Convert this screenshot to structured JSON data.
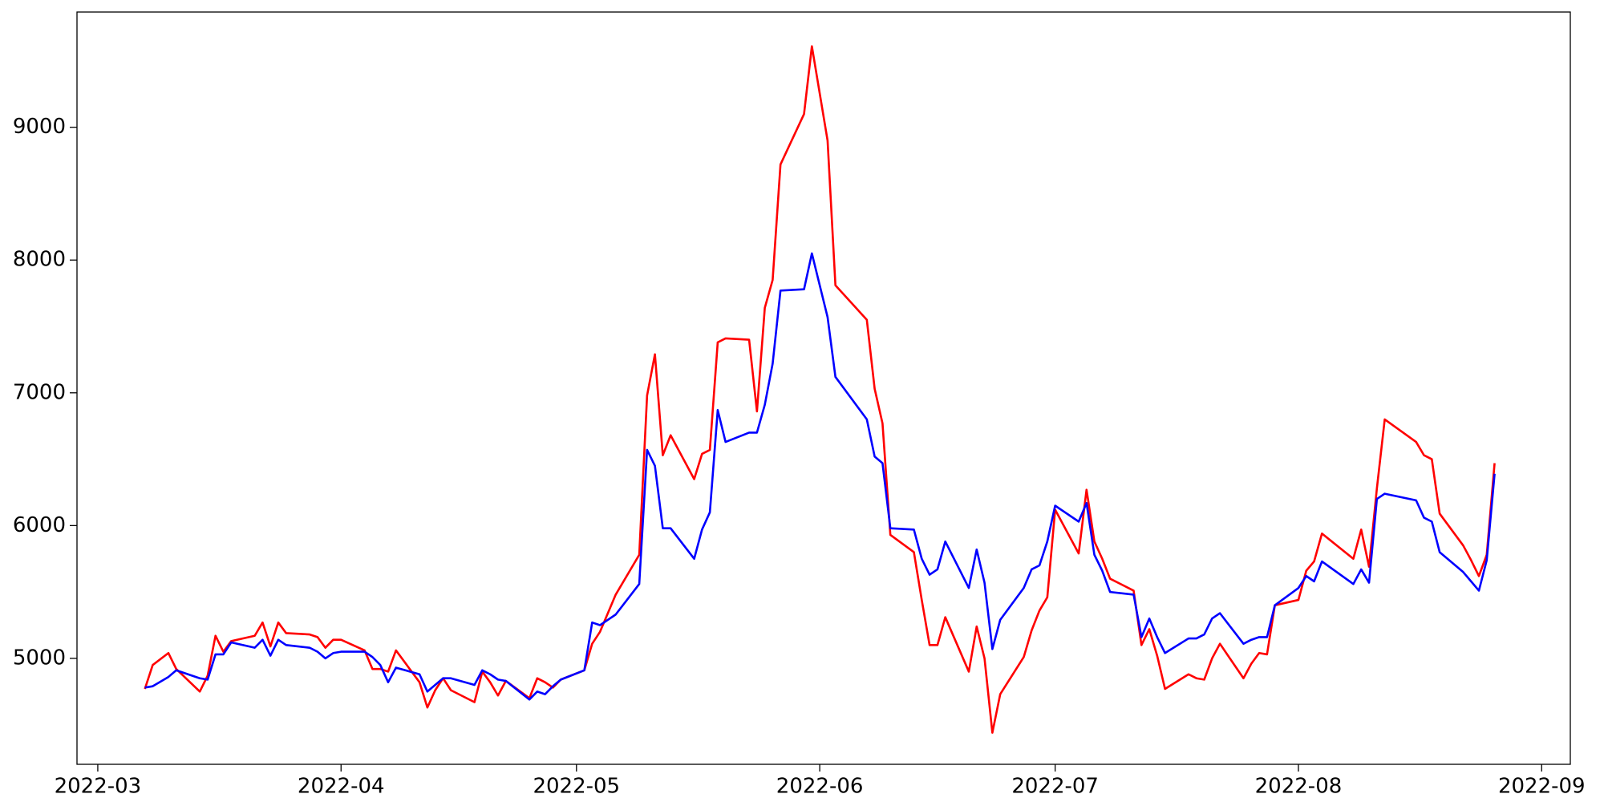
{
  "chart_data": {
    "type": "line",
    "x": [
      66,
      67,
      69,
      70,
      73,
      74,
      75,
      76,
      77,
      80,
      81,
      82,
      83,
      84,
      87,
      88,
      89,
      90,
      91,
      94,
      95,
      96,
      97,
      98,
      101,
      102,
      103,
      104,
      105,
      108,
      109,
      110,
      111,
      112,
      115,
      116,
      117,
      118,
      119,
      122,
      123,
      124,
      126,
      129,
      130,
      131,
      132,
      133,
      136,
      137,
      138,
      139,
      140,
      143,
      144,
      145,
      146,
      147,
      150,
      151,
      153,
      154,
      158,
      159,
      160,
      161,
      164,
      165,
      166,
      167,
      168,
      171,
      172,
      173,
      174,
      175,
      178,
      179,
      180,
      181,
      182,
      185,
      186,
      187,
      188,
      189,
      192,
      193,
      194,
      195,
      196,
      199,
      200,
      201,
      202,
      203,
      206,
      207,
      208,
      209,
      210,
      213,
      214,
      215,
      216,
      220,
      221,
      222,
      223,
      224,
      228,
      229,
      230,
      231,
      234,
      235,
      236,
      237,
      238
    ],
    "series": [
      {
        "color": "#ff0000",
        "values": [
          4770,
          4950,
          5040,
          4920,
          4750,
          4870,
          5170,
          5050,
          5130,
          5170,
          5270,
          5090,
          5270,
          5190,
          5180,
          5160,
          5080,
          5140,
          5140,
          5060,
          4920,
          4920,
          4900,
          5060,
          4820,
          4630,
          4760,
          4850,
          4760,
          4670,
          4900,
          4820,
          4720,
          4830,
          4700,
          4850,
          4820,
          4780,
          4840,
          4910,
          5110,
          5200,
          5480,
          5780,
          6980,
          7290,
          6530,
          6680,
          6350,
          6540,
          6570,
          7380,
          7410,
          7400,
          6860,
          7640,
          7850,
          8720,
          9100,
          9610,
          8900,
          7810,
          7550,
          7030,
          6770,
          5930,
          5800,
          5440,
          5100,
          5100,
          5310,
          4900,
          5240,
          5000,
          4440,
          4730,
          5010,
          5210,
          5360,
          5460,
          6120,
          5790,
          6270,
          5880,
          5750,
          5600,
          5510,
          5100,
          5220,
          5020,
          4770,
          4880,
          4850,
          4840,
          5000,
          5110,
          4850,
          4960,
          5040,
          5030,
          5400,
          5440,
          5660,
          5730,
          5940,
          5750,
          5970,
          5690,
          6280,
          6800,
          6630,
          6530,
          6500,
          6090,
          5850,
          5740,
          5620,
          5780,
          6470
        ]
      },
      {
        "color": "#0000ff",
        "values": [
          4780,
          4790,
          4860,
          4910,
          4850,
          4840,
          5030,
          5030,
          5120,
          5080,
          5140,
          5020,
          5140,
          5100,
          5080,
          5050,
          5000,
          5040,
          5050,
          5050,
          5010,
          4950,
          4820,
          4930,
          4880,
          4750,
          4800,
          4850,
          4850,
          4800,
          4910,
          4880,
          4840,
          4830,
          4690,
          4750,
          4730,
          4790,
          4840,
          4910,
          5270,
          5250,
          5330,
          5560,
          6570,
          6450,
          5980,
          5980,
          5750,
          5970,
          6100,
          6870,
          6630,
          6700,
          6700,
          6910,
          7220,
          7770,
          7780,
          8050,
          7570,
          7120,
          6800,
          6520,
          6470,
          5980,
          5970,
          5750,
          5630,
          5670,
          5880,
          5530,
          5820,
          5570,
          5070,
          5290,
          5530,
          5670,
          5700,
          5880,
          6150,
          6030,
          6170,
          5780,
          5660,
          5500,
          5480,
          5160,
          5300,
          5160,
          5040,
          5150,
          5150,
          5180,
          5300,
          5340,
          5110,
          5140,
          5160,
          5160,
          5400,
          5530,
          5620,
          5580,
          5730,
          5560,
          5670,
          5570,
          6200,
          6240,
          6190,
          6060,
          6030,
          5800,
          5650,
          5580,
          5510,
          5740,
          6390
        ]
      }
    ],
    "xlim": [
      57.35,
      247.65
    ],
    "xticks": [
      {
        "value": 60,
        "label": "2022-03"
      },
      {
        "value": 91,
        "label": "2022-04"
      },
      {
        "value": 121,
        "label": "2022-05"
      },
      {
        "value": 152,
        "label": "2022-06"
      },
      {
        "value": 182,
        "label": "2022-07"
      },
      {
        "value": 213,
        "label": "2022-08"
      },
      {
        "value": 244,
        "label": "2022-09"
      }
    ],
    "ylim": [
      4202,
      9868
    ],
    "yticks": [
      5000,
      6000,
      7000,
      8000,
      9000
    ],
    "grid": false
  }
}
